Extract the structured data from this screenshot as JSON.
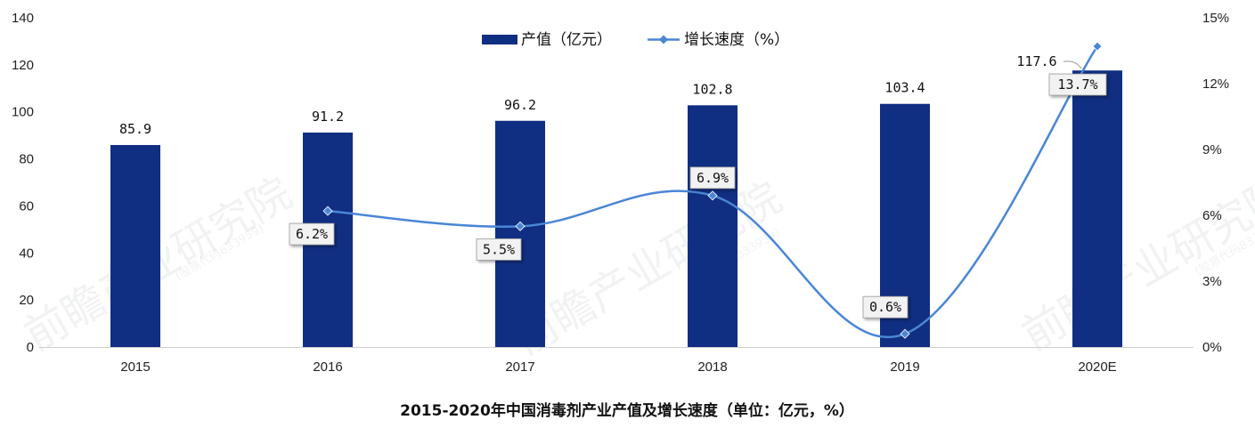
{
  "chart_data": {
    "type": "bar",
    "title": "2015-2020年中国消毒剂产业产值及增长速度（单位：亿元，%）",
    "categories": [
      "2015",
      "2016",
      "2017",
      "2018",
      "2019",
      "2020E"
    ],
    "series": [
      {
        "name": "产值（亿元）",
        "type": "bar",
        "axis": "left",
        "values": [
          85.9,
          91.2,
          96.2,
          102.8,
          103.4,
          117.6
        ],
        "labels": [
          "85.9",
          "91.2",
          "96.2",
          "102.8",
          "103.4",
          "117.6"
        ]
      },
      {
        "name": "增长速度（%）",
        "type": "line",
        "axis": "right",
        "values": [
          null,
          6.2,
          5.5,
          6.9,
          0.6,
          13.7
        ],
        "labels": [
          "",
          "6.2%",
          "5.5%",
          "6.9%",
          "0.6%",
          "13.7%"
        ]
      }
    ],
    "y_left": {
      "min": 0,
      "max": 140,
      "ticks": [
        "0",
        "20",
        "40",
        "60",
        "80",
        "100",
        "120",
        "140"
      ]
    },
    "y_right": {
      "min": 0,
      "max": 15,
      "ticks": [
        "0%",
        "3%",
        "6%",
        "9%",
        "12%",
        "15%"
      ]
    },
    "legend_position": "top-center",
    "grid": false
  },
  "colors": {
    "bar": "#102e82",
    "line": "#4a86d6",
    "text": "#111111"
  },
  "watermark": {
    "text": "前瞻产业研究院",
    "sub": "(股票代码833959)"
  }
}
